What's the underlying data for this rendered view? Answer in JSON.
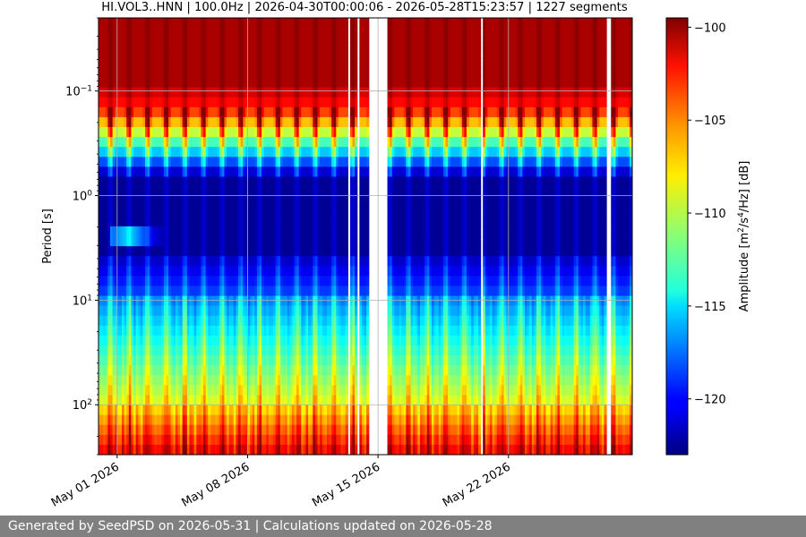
{
  "chart_data": {
    "type": "heatmap",
    "title": "HI.VOL3..HNN | 100.0Hz | 2026-04-30T00:00:06 - 2026-05-28T15:23:57 | 1227 segments",
    "xlabel": "",
    "ylabel": "Period [s]",
    "x_range": [
      "2026-04-30T00:00:06",
      "2026-05-28T15:23:57"
    ],
    "x_ticks": [
      {
        "date": "2026-05-01",
        "label": "May 01 2026"
      },
      {
        "date": "2026-05-08",
        "label": "May 08 2026"
      },
      {
        "date": "2026-05-15",
        "label": "May 15 2026"
      },
      {
        "date": "2026-05-22",
        "label": "May 22 2026"
      }
    ],
    "y_scale": "log",
    "y_inverted": true,
    "y_range": [
      0.02,
      300
    ],
    "y_ticks": [
      {
        "value": 0.1,
        "base": "10",
        "exp": "−1"
      },
      {
        "value": 1,
        "base": "10",
        "exp": "0"
      },
      {
        "value": 10,
        "base": "10",
        "exp": "1"
      },
      {
        "value": 100,
        "base": "10",
        "exp": "2"
      }
    ],
    "grid": true,
    "data_gaps": [
      [
        "2026-05-13T09:00",
        "2026-05-13T12:00"
      ],
      [
        "2026-05-13T21:00",
        "2026-05-14T00:00"
      ],
      [
        "2026-05-14T10:00",
        "2026-05-15T10:00"
      ],
      [
        "2026-05-20T12:00",
        "2026-05-20T15:00"
      ],
      [
        "2026-05-27T06:00",
        "2026-05-27T12:00"
      ]
    ],
    "colorbar": {
      "label_main": "Amplitude [m",
      "label_sup1": "2",
      "label_mid1": "/s",
      "label_sup2": "4",
      "label_end": "/Hz] [dB]",
      "min": -123,
      "max": -99.5,
      "ticks": [
        -100,
        -105,
        -110,
        -115,
        -120
      ],
      "tick_labels": [
        "−100",
        "−105",
        "−110",
        "−115",
        "−120"
      ],
      "colormap": "jet"
    }
  },
  "footer": {
    "text": "Generated by SeedPSD on 2026-05-31 | Calculations updated on 2026-05-28"
  }
}
